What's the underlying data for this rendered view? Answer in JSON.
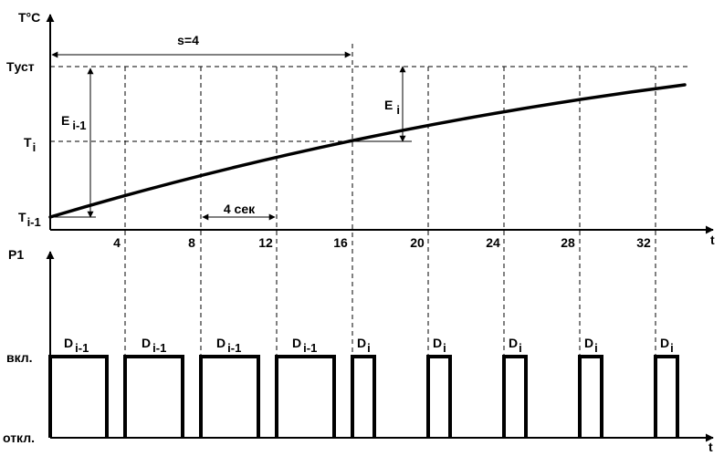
{
  "top_chart": {
    "y_axis_label": "T°C",
    "x_axis_label": "t",
    "y_levels": {
      "t_set": "Tуст",
      "t_i": "T",
      "t_i_sub": "i",
      "t_prev": "T",
      "t_prev_sub": "i-1"
    },
    "annotations": {
      "s_label": "s=4",
      "e_prev": "E",
      "e_prev_sub": "i-1",
      "e_i": "E",
      "e_i_sub": "i",
      "interval": "4 сек"
    },
    "ticks": [
      "4",
      "8",
      "12",
      "16",
      "20",
      "24",
      "28",
      "32"
    ]
  },
  "bottom_chart": {
    "y_axis_label": "P1",
    "x_axis_label": "t",
    "on_label": "вкл.",
    "off_label": "откл.",
    "pulses": [
      {
        "main": "D",
        "sub": "i-1"
      },
      {
        "main": "D",
        "sub": "i-1"
      },
      {
        "main": "D",
        "sub": "i-1"
      },
      {
        "main": "D",
        "sub": "i-1"
      },
      {
        "main": "D",
        "sub": "i"
      },
      {
        "main": "D",
        "sub": "i"
      },
      {
        "main": "D",
        "sub": "i"
      },
      {
        "main": "D",
        "sub": "i"
      },
      {
        "main": "D",
        "sub": "i"
      }
    ]
  }
}
